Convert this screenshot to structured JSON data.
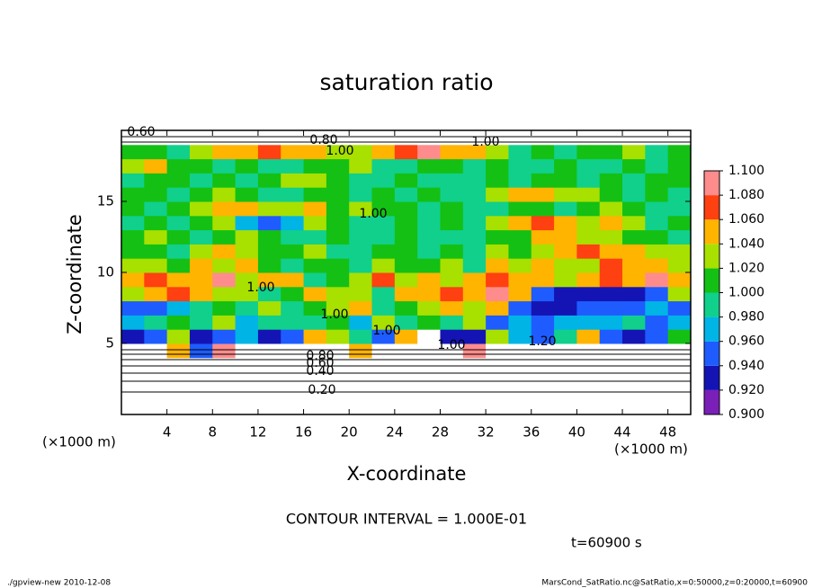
{
  "chart_data": {
    "type": "heatmap",
    "title": "saturation ratio",
    "x_label": "X-coordinate",
    "y_label": "Z-coordinate",
    "x_unit": "(×1000 m)",
    "y_unit": "(×1000 m)",
    "xlim": [
      0,
      50
    ],
    "ylim": [
      0,
      20
    ],
    "xticks": [
      4,
      8,
      12,
      16,
      20,
      24,
      28,
      32,
      36,
      40,
      44,
      48
    ],
    "yticks": [
      5,
      10,
      15
    ],
    "x": [
      1,
      3,
      5,
      7,
      9,
      11,
      13,
      15,
      17,
      19,
      21,
      23,
      25,
      27,
      29,
      31,
      33,
      35,
      37,
      39,
      41,
      43,
      45,
      47,
      49
    ],
    "z": [
      0.5,
      1.5,
      2.5,
      3.5,
      4.5,
      5.5,
      6.5,
      7.5,
      8.5,
      9.5,
      10.5,
      11.5,
      12.5,
      13.5,
      14.5,
      15.5,
      16.5,
      17.5,
      18.5,
      19.5
    ],
    "values": [
      [
        0.1,
        0.1,
        0.1,
        0.1,
        0.1,
        0.1,
        0.1,
        0.1,
        0.1,
        0.1,
        0.1,
        0.1,
        0.1,
        0.1,
        0.1,
        0.1,
        0.1,
        0.1,
        0.1,
        0.1,
        0.1,
        0.1,
        0.1,
        0.1,
        0.1
      ],
      [
        0.2,
        0.2,
        0.2,
        0.2,
        0.2,
        0.2,
        0.2,
        0.2,
        0.2,
        0.2,
        0.2,
        0.2,
        0.2,
        0.2,
        0.2,
        0.2,
        0.2,
        0.2,
        0.2,
        0.2,
        0.2,
        0.2,
        0.2,
        0.2,
        0.2
      ],
      [
        0.4,
        0.4,
        0.4,
        0.4,
        0.4,
        0.4,
        0.4,
        0.4,
        0.4,
        0.4,
        0.4,
        0.4,
        0.4,
        0.4,
        0.4,
        0.4,
        0.4,
        0.4,
        0.4,
        0.4,
        0.4,
        0.4,
        0.4,
        0.4,
        0.4
      ],
      [
        0.6,
        0.6,
        0.6,
        0.6,
        0.6,
        0.6,
        0.6,
        0.6,
        0.6,
        0.6,
        0.6,
        0.6,
        0.6,
        0.6,
        0.6,
        0.6,
        0.6,
        0.6,
        0.6,
        0.6,
        0.6,
        0.6,
        0.6,
        0.6,
        0.6
      ],
      [
        1.2,
        1.2,
        1.05,
        0.95,
        1.1,
        1.2,
        1.2,
        1.2,
        1.2,
        1.2,
        1.05,
        1.2,
        1.2,
        1.2,
        1.2,
        1.1,
        1.2,
        1.2,
        1.2,
        1.2,
        1.2,
        1.2,
        1.2,
        1.2,
        1.2
      ],
      [
        0.94,
        0.96,
        1.04,
        0.93,
        0.95,
        0.97,
        0.92,
        0.96,
        1.06,
        1.03,
        1.0,
        0.95,
        1.05,
        1.2,
        0.94,
        0.92,
        1.04,
        0.97,
        0.96,
        1.0,
        1.06,
        0.95,
        0.94,
        0.96,
        1.02
      ],
      [
        0.97,
        0.99,
        1.01,
        1.0,
        1.03,
        0.98,
        0.99,
        1.0,
        1.0,
        1.02,
        0.98,
        1.04,
        1.0,
        1.01,
        0.99,
        1.03,
        0.95,
        0.97,
        0.96,
        0.98,
        0.97,
        0.98,
        0.99,
        0.96,
        0.97
      ],
      [
        0.95,
        0.96,
        0.98,
        1.0,
        1.01,
        1.0,
        1.04,
        1.0,
        1.01,
        1.03,
        1.05,
        1.0,
        1.02,
        1.04,
        1.06,
        1.03,
        1.05,
        0.95,
        0.94,
        0.93,
        0.95,
        0.96,
        0.95,
        0.97,
        0.96
      ],
      [
        1.04,
        1.06,
        1.07,
        1.05,
        1.03,
        1.04,
        1.0,
        1.02,
        1.05,
        1.04,
        1.03,
        1.0,
        1.06,
        1.05,
        1.07,
        1.06,
        1.08,
        1.05,
        0.95,
        0.93,
        0.92,
        0.94,
        0.93,
        0.95,
        1.04
      ],
      [
        1.06,
        1.07,
        1.05,
        1.06,
        1.08,
        1.04,
        1.05,
        1.06,
        1.0,
        1.01,
        1.03,
        1.07,
        1.04,
        1.05,
        1.03,
        1.06,
        1.07,
        1.05,
        1.06,
        1.03,
        1.05,
        1.07,
        1.06,
        1.08,
        1.06
      ],
      [
        1.03,
        1.04,
        1.02,
        1.05,
        1.03,
        1.06,
        1.02,
        1.0,
        1.02,
        1.01,
        1.0,
        1.03,
        1.02,
        1.01,
        1.04,
        1.0,
        1.05,
        1.04,
        1.06,
        1.03,
        1.04,
        1.07,
        1.05,
        1.06,
        1.04
      ],
      [
        1.01,
        1.02,
        1.0,
        1.03,
        1.05,
        1.04,
        1.02,
        1.01,
        1.03,
        1.0,
        1.0,
        1.01,
        1.02,
        1.0,
        1.01,
        1.0,
        1.03,
        1.01,
        1.04,
        1.05,
        1.07,
        1.06,
        1.05,
        1.04,
        1.03
      ],
      [
        1.02,
        1.04,
        1.01,
        1.0,
        1.02,
        1.03,
        1.01,
        1.0,
        1.0,
        1.01,
        1.0,
        1.0,
        1.01,
        1.0,
        1.0,
        1.0,
        1.01,
        1.02,
        1.06,
        1.05,
        1.03,
        1.04,
        1.02,
        1.01,
        1.0
      ],
      [
        1.0,
        1.01,
        1.0,
        1.02,
        1.04,
        0.97,
        0.96,
        0.98,
        1.04,
        1.01,
        1.0,
        1.0,
        1.02,
        1.0,
        1.01,
        1.0,
        1.03,
        1.05,
        1.07,
        1.06,
        1.04,
        1.05,
        1.03,
        1.0,
        1.01
      ],
      [
        1.01,
        1.0,
        1.02,
        1.03,
        1.05,
        1.06,
        1.04,
        1.03,
        1.05,
        1.02,
        1.03,
        1.01,
        1.02,
        1.0,
        1.01,
        1.0,
        1.0,
        1.01,
        1.02,
        1.0,
        1.01,
        1.03,
        1.02,
        1.0,
        1.0
      ],
      [
        1.02,
        1.01,
        1.0,
        1.02,
        1.03,
        1.01,
        1.0,
        1.0,
        1.02,
        1.01,
        1.0,
        1.02,
        1.0,
        1.01,
        1.0,
        1.0,
        1.03,
        1.05,
        1.06,
        1.04,
        1.03,
        1.02,
        1.0,
        1.01,
        1.0
      ],
      [
        1.0,
        1.01,
        1.02,
        1.0,
        1.01,
        1.0,
        1.02,
        1.04,
        1.03,
        1.01,
        1.0,
        1.0,
        1.01,
        1.0,
        1.0,
        1.0,
        1.01,
        1.0,
        1.02,
        1.01,
        1.0,
        1.01,
        1.0,
        1.02,
        1.01
      ],
      [
        1.03,
        1.05,
        1.02,
        1.01,
        1.0,
        1.01,
        1.0,
        1.0,
        1.02,
        1.01,
        1.03,
        1.0,
        1.0,
        1.01,
        1.02,
        1.0,
        1.01,
        1.0,
        1.0,
        1.01,
        1.0,
        1.0,
        1.01,
        1.0,
        1.02
      ],
      [
        1.02,
        1.01,
        1.0,
        1.03,
        1.05,
        1.06,
        1.07,
        1.06,
        1.05,
        1.03,
        1.04,
        1.06,
        1.07,
        1.08,
        1.06,
        1.05,
        1.03,
        1.0,
        1.01,
        1.0,
        1.02,
        1.01,
        1.03,
        1.0,
        1.01
      ],
      [
        0.7,
        0.7,
        0.7,
        0.7,
        0.7,
        0.7,
        0.7,
        0.7,
        0.7,
        0.7,
        0.7,
        0.7,
        0.7,
        0.7,
        0.7,
        0.7,
        0.7,
        0.7,
        0.7,
        0.7,
        0.7,
        0.7,
        0.7,
        0.7,
        0.7
      ]
    ],
    "colorbar": {
      "ticks": [
        {
          "value": 0.9,
          "label": "0.900"
        },
        {
          "value": 0.92,
          "label": "0.920"
        },
        {
          "value": 0.94,
          "label": "0.940"
        },
        {
          "value": 0.96,
          "label": "0.960"
        },
        {
          "value": 0.98,
          "label": "0.980"
        },
        {
          "value": 1.0,
          "label": "1.000"
        },
        {
          "value": 1.02,
          "label": "1.020"
        },
        {
          "value": 1.04,
          "label": "1.040"
        },
        {
          "value": 1.06,
          "label": "1.060"
        },
        {
          "value": 1.08,
          "label": "1.080"
        },
        {
          "value": 1.1,
          "label": "1.100"
        }
      ],
      "colors": [
        "#7a1fb8",
        "#1414b4",
        "#1e5cff",
        "#00b4e6",
        "#10d08c",
        "#14c014",
        "#a8e000",
        "#ffb400",
        "#ff4010",
        "#ff8c8c"
      ]
    },
    "contour_labels": [
      "0.60",
      "0.80",
      "1.00",
      "1.00",
      "1.00",
      "1.00",
      "1.00",
      "1.00",
      "1.00",
      "1.20",
      "0.80",
      "0.60",
      "0.40",
      "0.20"
    ],
    "contour_interval": "CONTOUR INTERVAL = 1.000E-01",
    "time_label": "t=60900 s",
    "footer_left": "./gpview-new  2010-12-08",
    "footer_right": "MarsCond_SatRatio.nc@SatRatio,x=0:50000,z=0:20000,t=60900"
  }
}
